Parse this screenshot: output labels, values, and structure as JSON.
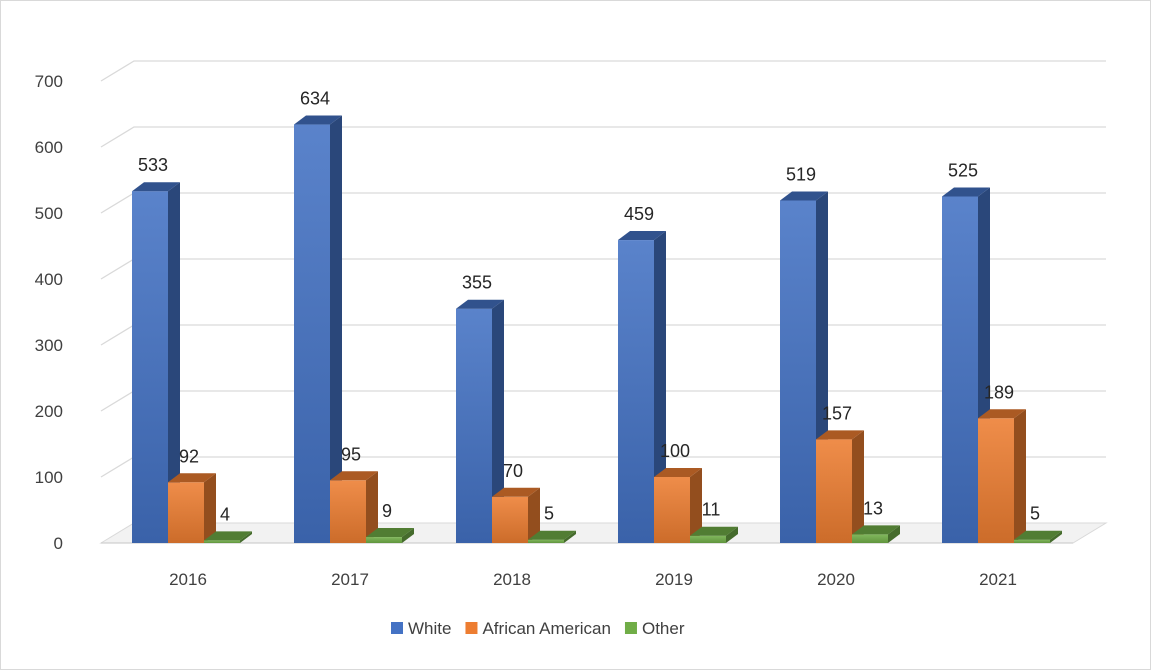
{
  "chart_data": {
    "type": "bar",
    "title": "",
    "xlabel": "",
    "ylabel": "",
    "categories": [
      "2016",
      "2017",
      "2018",
      "2019",
      "2020",
      "2021"
    ],
    "series": [
      {
        "name": "White",
        "values": [
          533,
          634,
          355,
          459,
          519,
          525
        ],
        "color": "#4472c4"
      },
      {
        "name": "African American",
        "values": [
          92,
          95,
          70,
          100,
          157,
          189
        ],
        "color": "#ed7d31"
      },
      {
        "name": "Other",
        "values": [
          4,
          9,
          5,
          11,
          13,
          5
        ],
        "color": "#70ad47"
      }
    ],
    "ylim": [
      0,
      700
    ],
    "yticks": [
      "0",
      "100",
      "200",
      "300",
      "400",
      "500",
      "600",
      "700"
    ],
    "grid": true,
    "legend": "bottom",
    "style": "3d-clustered-column"
  }
}
